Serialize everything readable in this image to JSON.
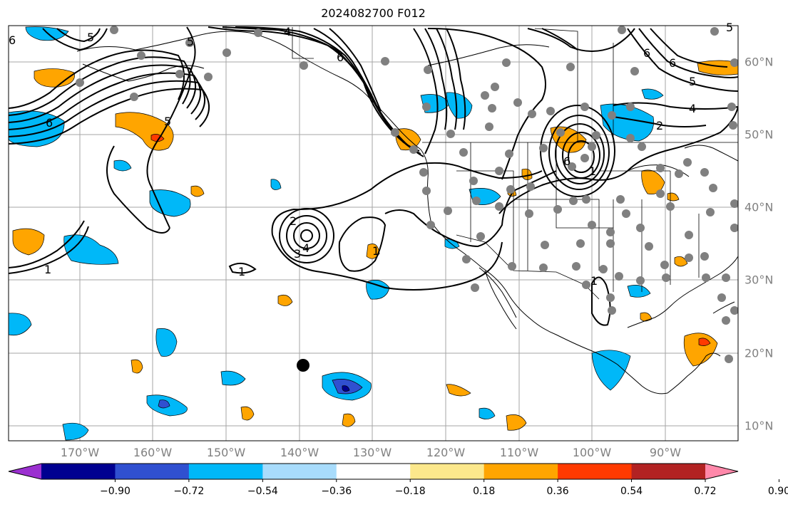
{
  "title": "2024082700 F012",
  "lon_labels": [
    "170°W",
    "160°W",
    "150°W",
    "140°W",
    "130°W",
    "120°W",
    "110°W",
    "100°W",
    "90°W"
  ],
  "lat_labels": [
    "60°N",
    "50°N",
    "40°N",
    "30°N",
    "20°N",
    "10°N"
  ],
  "contour_labels": [
    "6",
    "5",
    "4",
    "3",
    "2",
    "1"
  ],
  "colorbar": {
    "ticks": [
      "−0.90",
      "−0.72",
      "−0.54",
      "−0.36",
      "−0.18",
      "0.18",
      "0.36",
      "0.54",
      "0.72",
      "0.90"
    ],
    "colors": [
      "#9b30d0",
      "#000090",
      "#3050d0",
      "#00b8f8",
      "#a8dcfc",
      "#ffffff",
      "#fce88c",
      "#ffa500",
      "#ff3a00",
      "#b22222",
      "#ff88aa"
    ]
  }
}
